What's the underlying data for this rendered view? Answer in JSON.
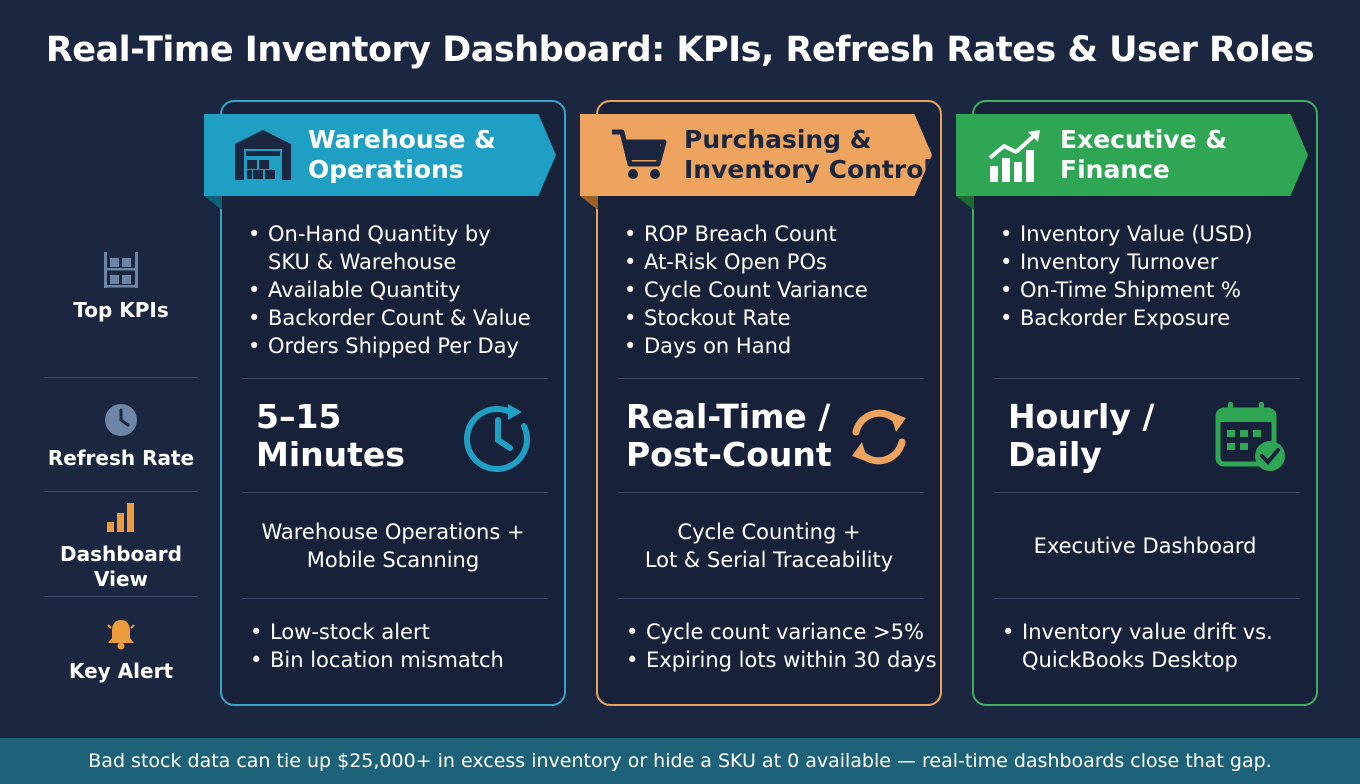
{
  "title": "Real-Time Inventory Dashboard: KPIs, Refresh Rates & User Roles",
  "row_labels": {
    "top_kpis": "Top KPIs",
    "refresh_rate": "Refresh Rate",
    "dashboard_view": "Dashboard View",
    "key_alert": "Key Alert"
  },
  "colors": {
    "background": "#1b2740",
    "warehouse": "#1f9fc4",
    "purchasing": "#eea45e",
    "executive": "#2fa653",
    "footer": "#1d6278"
  },
  "columns": [
    {
      "title_line1": "Warehouse &",
      "title_line2": "Operations",
      "icon": "warehouse-icon",
      "kpis": [
        "On-Hand Quantity by",
        "SKU & Warehouse",
        "Available Quantity",
        "Backorder Count & Value",
        "Orders Shipped Per Day"
      ],
      "refresh_line1": "5–15",
      "refresh_line2": "Minutes",
      "refresh_icon": "clock-refresh-icon",
      "view_line1": "Warehouse Operations +",
      "view_line2": "Mobile Scanning",
      "alerts": [
        "Low-stock alert",
        "Bin location mismatch"
      ]
    },
    {
      "title_line1": "Purchasing &",
      "title_line2": "Inventory Control",
      "icon": "shopping-cart-icon",
      "kpis": [
        "ROP Breach Count",
        "At-Risk Open POs",
        "Cycle Count Variance",
        "Stockout Rate",
        "Days on Hand"
      ],
      "refresh_line1": "Real-Time /",
      "refresh_line2": "Post-Count",
      "refresh_icon": "sync-arrows-icon",
      "view_line1": "Cycle Counting +",
      "view_line2": "Lot & Serial Traceability",
      "alerts": [
        "Cycle count variance >5%",
        "Expiring lots within 30 days"
      ]
    },
    {
      "title_line1": "Executive &",
      "title_line2": "Finance",
      "icon": "growth-chart-icon",
      "kpis": [
        "Inventory Value (USD)",
        "Inventory Turnover",
        "On-Time Shipment %",
        "Backorder Exposure"
      ],
      "refresh_line1": "Hourly /",
      "refresh_line2": "Daily",
      "refresh_icon": "calendar-check-icon",
      "view_line1": "Executive Dashboard",
      "alerts": [
        "Inventory value drift vs.",
        "QuickBooks Desktop"
      ]
    }
  ],
  "footer": "Bad stock data can tie up $25,000+ in excess inventory or hide a SKU at 0 available — real-time dashboards close that gap."
}
